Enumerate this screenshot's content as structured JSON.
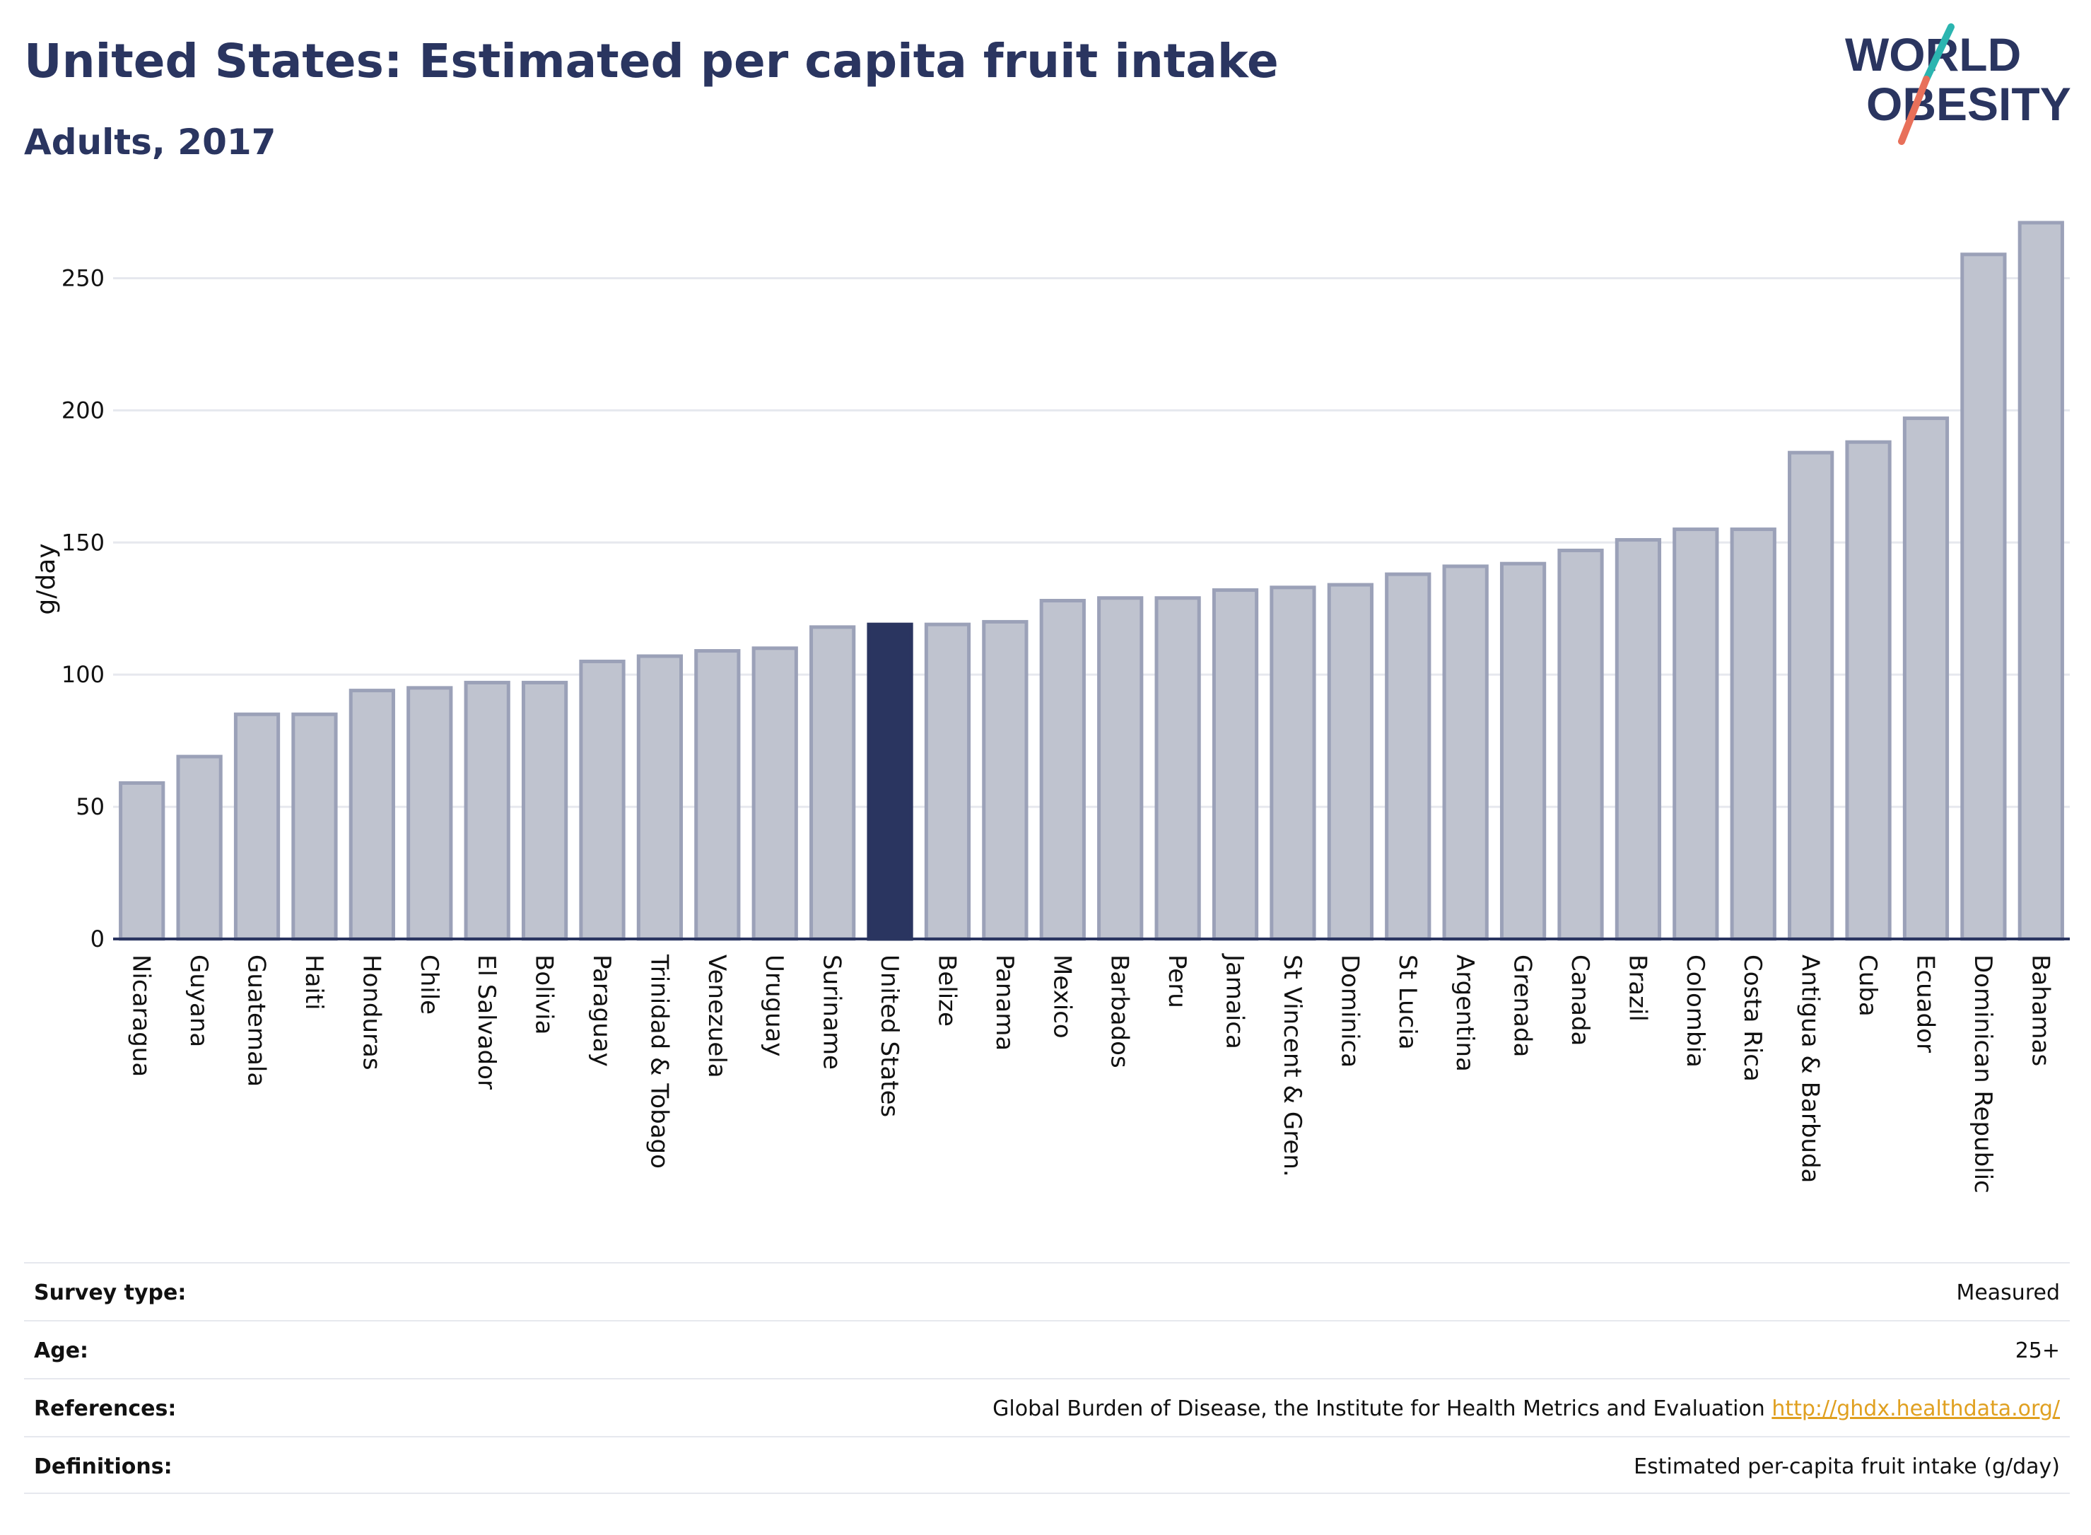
{
  "header": {
    "title": "United States: Estimated per capita fruit intake",
    "subtitle": "Adults, 2017"
  },
  "logo": {
    "line1": "WORLD",
    "line2": "OBESITY",
    "colors": {
      "text": "#2a3560",
      "slash_top": "#2bb5b0",
      "slash_bottom": "#e8705a"
    }
  },
  "chart_data": {
    "type": "bar",
    "ylabel": "g/day",
    "ylim": [
      0,
      275
    ],
    "yticks": [
      0,
      50,
      100,
      150,
      200,
      250
    ],
    "grid": true,
    "highlight": "United States",
    "colors": {
      "bar": "#bfc3cf",
      "bar_border": "#9ba1b8",
      "highlight": "#2a3560",
      "axis": "#2a3560",
      "grid": "#e6e8ee"
    },
    "categories": [
      "Nicaragua",
      "Guyana",
      "Guatemala",
      "Haiti",
      "Honduras",
      "Chile",
      "El Salvador",
      "Bolivia",
      "Paraguay",
      "Trinidad & Tobago",
      "Venezuela",
      "Uruguay",
      "Suriname",
      "United States",
      "Belize",
      "Panama",
      "Mexico",
      "Barbados",
      "Peru",
      "Jamaica",
      "St Vincent & Gren.",
      "Dominica",
      "St Lucia",
      "Argentina",
      "Grenada",
      "Canada",
      "Brazil",
      "Colombia",
      "Costa Rica",
      "Antigua & Barbuda",
      "Cuba",
      "Ecuador",
      "Dominican Republic",
      "Bahamas"
    ],
    "values": [
      59,
      69,
      85,
      85,
      94,
      95,
      97,
      97,
      105,
      107,
      109,
      110,
      118,
      119,
      119,
      120,
      128,
      129,
      129,
      132,
      133,
      134,
      138,
      141,
      142,
      147,
      151,
      155,
      155,
      184,
      188,
      197,
      259,
      271
    ]
  },
  "meta": {
    "survey_type_label": "Survey type:",
    "survey_type_value": "Measured",
    "age_label": "Age:",
    "age_value": "25+",
    "references_label": "References:",
    "references_text": "Global Burden of Disease, the Institute for Health Metrics and Evaluation ",
    "references_link": "http://ghdx.healthdata.org/",
    "definitions_label": "Definitions:",
    "definitions_value": "Estimated per-capita fruit intake (g/day)"
  }
}
